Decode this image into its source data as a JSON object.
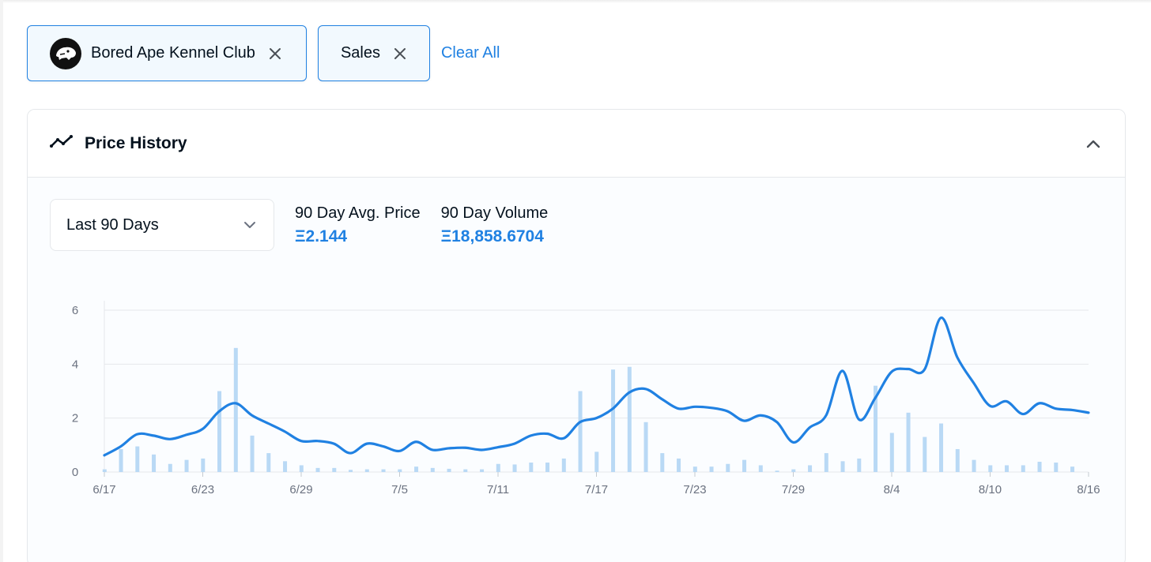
{
  "filters": {
    "collection": {
      "label": "Bored Ape Kennel Club",
      "icon": "kennel-club-logo-icon"
    },
    "event": {
      "label": "Sales"
    },
    "clear_all": "Clear All"
  },
  "panel": {
    "title": "Price History",
    "range_select": {
      "value": "Last 90 Days"
    },
    "stats": {
      "avg_label": "90 Day Avg. Price",
      "avg_value": "Ξ2.144",
      "volume_label": "90 Day Volume",
      "volume_value": "Ξ18,858.6704"
    }
  },
  "colors": {
    "accent": "#2081e2",
    "bar": "#b9d9f5",
    "grid": "#e5e8eb"
  },
  "chart_data": {
    "type": "line",
    "ylim": [
      0,
      6
    ],
    "y_ticks": [
      0,
      2,
      4,
      6
    ],
    "x_tick_labels": [
      {
        "x": 0,
        "label": "6/17"
      },
      {
        "x": 6,
        "label": "6/23"
      },
      {
        "x": 12,
        "label": "6/29"
      },
      {
        "x": 18,
        "label": "7/5"
      },
      {
        "x": 24,
        "label": "7/11"
      },
      {
        "x": 30,
        "label": "7/17"
      },
      {
        "x": 36,
        "label": "7/23"
      },
      {
        "x": 42,
        "label": "7/29"
      },
      {
        "x": 48,
        "label": "8/4"
      },
      {
        "x": 54,
        "label": "8/10"
      },
      {
        "x": 60,
        "label": "8/16"
      }
    ],
    "volume_bars": [
      0.1,
      0.85,
      0.95,
      0.65,
      0.3,
      0.45,
      0.5,
      3.0,
      4.6,
      1.35,
      0.7,
      0.4,
      0.25,
      0.15,
      0.15,
      0.08,
      0.1,
      0.1,
      0.1,
      0.2,
      0.15,
      0.12,
      0.1,
      0.1,
      0.3,
      0.28,
      0.35,
      0.35,
      0.5,
      3.0,
      0.75,
      3.8,
      3.9,
      1.85,
      0.7,
      0.5,
      0.2,
      0.2,
      0.3,
      0.45,
      0.25,
      0.05,
      0.1,
      0.25,
      0.7,
      0.4,
      0.5,
      3.2,
      1.45,
      2.2,
      1.3,
      1.8,
      0.85,
      0.45,
      0.25,
      0.25,
      0.25,
      0.38,
      0.35,
      0.2
    ],
    "price_line": [
      [
        0,
        0.62
      ],
      [
        1,
        0.95
      ],
      [
        2,
        1.4
      ],
      [
        3,
        1.35
      ],
      [
        4,
        1.22
      ],
      [
        5,
        1.38
      ],
      [
        6,
        1.6
      ],
      [
        7,
        2.25
      ],
      [
        8,
        2.55
      ],
      [
        9,
        2.1
      ],
      [
        10,
        1.8
      ],
      [
        11,
        1.5
      ],
      [
        12,
        1.15
      ],
      [
        13,
        1.15
      ],
      [
        14,
        1.05
      ],
      [
        15,
        0.7
      ],
      [
        16,
        1.05
      ],
      [
        17,
        0.95
      ],
      [
        18,
        0.78
      ],
      [
        19,
        1.12
      ],
      [
        20,
        0.82
      ],
      [
        21,
        0.88
      ],
      [
        22,
        0.9
      ],
      [
        23,
        0.82
      ],
      [
        24,
        0.92
      ],
      [
        25,
        1.05
      ],
      [
        26,
        1.35
      ],
      [
        27,
        1.42
      ],
      [
        28,
        1.25
      ],
      [
        29,
        1.85
      ],
      [
        30,
        2.0
      ],
      [
        31,
        2.35
      ],
      [
        32,
        2.95
      ],
      [
        33,
        3.08
      ],
      [
        34,
        2.7
      ],
      [
        35,
        2.35
      ],
      [
        36,
        2.42
      ],
      [
        37,
        2.38
      ],
      [
        38,
        2.25
      ],
      [
        39,
        1.9
      ],
      [
        40,
        2.1
      ],
      [
        41,
        1.85
      ],
      [
        42,
        1.1
      ],
      [
        43,
        1.65
      ],
      [
        44,
        2.1
      ],
      [
        45,
        3.75
      ],
      [
        46,
        1.95
      ],
      [
        47,
        2.75
      ],
      [
        48,
        3.72
      ],
      [
        49,
        3.82
      ],
      [
        50,
        3.8
      ],
      [
        51,
        5.72
      ],
      [
        52,
        4.25
      ],
      [
        53,
        3.3
      ],
      [
        54,
        2.45
      ],
      [
        55,
        2.62
      ],
      [
        56,
        2.15
      ],
      [
        57,
        2.55
      ],
      [
        58,
        2.35
      ],
      [
        59,
        2.3
      ],
      [
        60,
        2.2
      ]
    ]
  }
}
